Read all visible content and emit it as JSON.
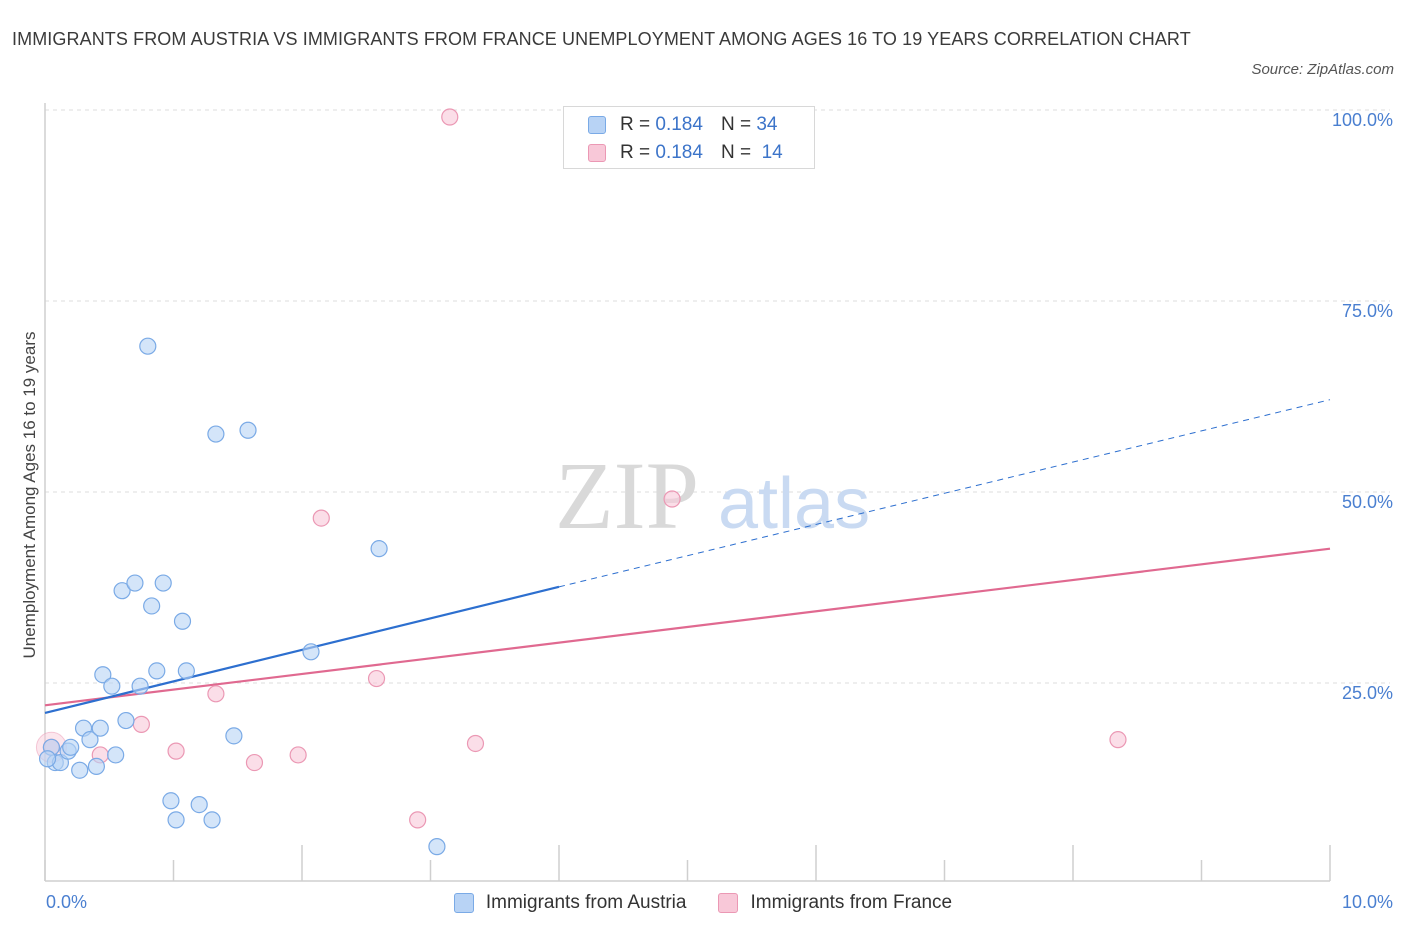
{
  "title": "IMMIGRANTS FROM AUSTRIA VS IMMIGRANTS FROM FRANCE UNEMPLOYMENT AMONG AGES 16 TO 19 YEARS CORRELATION CHART",
  "source": "Source: ZipAtlas.com",
  "watermark": {
    "zip": "ZIP",
    "atlas": "atlas"
  },
  "colors": {
    "austria_fill": "#b8d3f5",
    "austria_stroke": "#7aaae6",
    "austria_line": "#2d6fcf",
    "france_fill": "#f8c8d8",
    "france_stroke": "#eb98b4",
    "france_line": "#e06990",
    "tick_text": "#4a7fd0",
    "grid": "#dcdcdc"
  },
  "legend_top": [
    {
      "r_label": "R =",
      "r_value": "0.184",
      "n_label": "N =",
      "n_value": "34"
    },
    {
      "r_label": "R =",
      "r_value": "0.184",
      "n_label": "N =",
      "n_value": "14"
    }
  ],
  "legend_bottom": [
    {
      "label": "Immigrants from Austria"
    },
    {
      "label": "Immigrants from France"
    }
  ],
  "chart_data": {
    "type": "scatter",
    "title": "IMMIGRANTS FROM AUSTRIA VS IMMIGRANTS FROM FRANCE UNEMPLOYMENT AMONG AGES 16 TO 19 YEARS CORRELATION CHART",
    "xlabel": "",
    "ylabel": "Unemployment Among Ages 16 to 19 years",
    "xlim": [
      0,
      10
    ],
    "ylim": [
      0,
      100
    ],
    "x_tick_labels": [
      "0.0%",
      "10.0%"
    ],
    "y_ticks": [
      25,
      50,
      75,
      100
    ],
    "y_tick_labels": [
      "25.0%",
      "50.0%",
      "75.0%",
      "100.0%"
    ],
    "grid": true,
    "series": [
      {
        "name": "Immigrants from Austria",
        "R": 0.184,
        "N": 34,
        "points": [
          [
            0.05,
            17.5
          ],
          [
            0.08,
            15.5
          ],
          [
            0.12,
            15.5
          ],
          [
            0.18,
            17.0
          ],
          [
            0.2,
            17.5
          ],
          [
            0.27,
            14.5
          ],
          [
            0.3,
            20.0
          ],
          [
            0.35,
            18.5
          ],
          [
            0.4,
            15.0
          ],
          [
            0.43,
            20.0
          ],
          [
            0.45,
            27.0
          ],
          [
            0.52,
            25.5
          ],
          [
            0.55,
            16.5
          ],
          [
            0.6,
            38.0
          ],
          [
            0.63,
            21.0
          ],
          [
            0.7,
            39.0
          ],
          [
            0.74,
            25.5
          ],
          [
            0.8,
            70.0
          ],
          [
            0.83,
            36.0
          ],
          [
            0.87,
            27.5
          ],
          [
            0.92,
            39.0
          ],
          [
            0.98,
            10.5
          ],
          [
            1.02,
            8.0
          ],
          [
            1.07,
            34.0
          ],
          [
            1.1,
            27.5
          ],
          [
            1.2,
            10.0
          ],
          [
            1.3,
            8.0
          ],
          [
            1.33,
            58.5
          ],
          [
            1.47,
            19.0
          ],
          [
            1.58,
            59.0
          ],
          [
            2.07,
            30.0
          ],
          [
            2.6,
            43.5
          ],
          [
            3.05,
            4.5
          ],
          [
            0.02,
            16.0
          ]
        ],
        "trend_solid": {
          "x": [
            0,
            4.0
          ],
          "y": [
            22.0,
            38.5
          ]
        },
        "trend_dashed": {
          "x": [
            4.0,
            10.0
          ],
          "y": [
            38.5,
            63.0
          ]
        }
      },
      {
        "name": "Immigrants from France",
        "R": 0.184,
        "N": 14,
        "points": [
          [
            0.05,
            17.5
          ],
          [
            0.43,
            16.5
          ],
          [
            0.75,
            20.5
          ],
          [
            1.02,
            17.0
          ],
          [
            1.33,
            24.5
          ],
          [
            1.63,
            15.5
          ],
          [
            1.97,
            16.5
          ],
          [
            2.15,
            47.5
          ],
          [
            2.58,
            26.5
          ],
          [
            2.9,
            8.0
          ],
          [
            3.15,
            100.0
          ],
          [
            3.35,
            18.0
          ],
          [
            4.88,
            50.0
          ],
          [
            8.35,
            18.5
          ]
        ],
        "trend_solid": {
          "x": [
            0,
            10.0
          ],
          "y": [
            23.0,
            43.5
          ]
        }
      }
    ]
  }
}
